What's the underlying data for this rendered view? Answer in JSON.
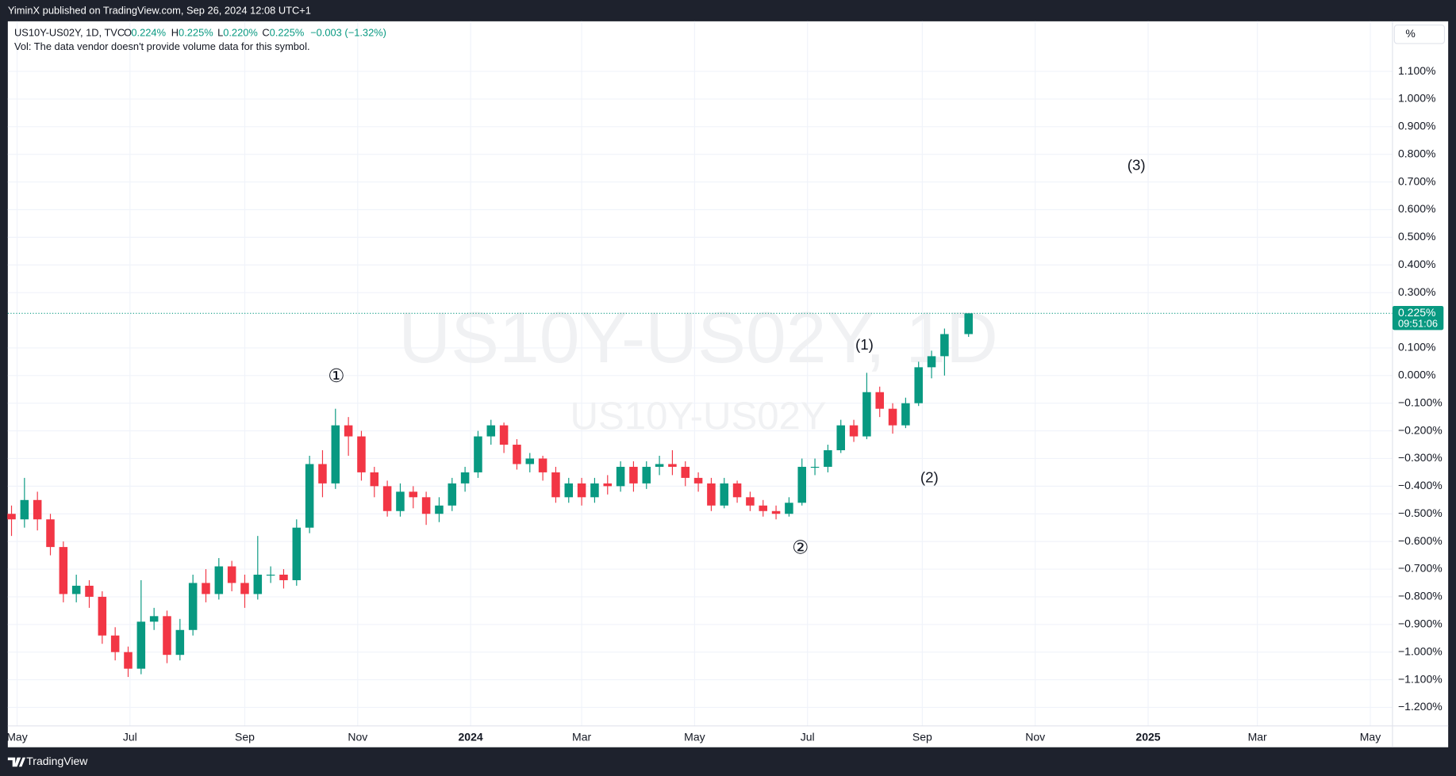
{
  "header": {
    "publisher": "YiminX published on TradingView.com, Sep 26, 2024 12:08 UTC+1"
  },
  "footer": {
    "brand": "TradingView"
  },
  "toolbar": {
    "scale_button": "%"
  },
  "chart_data": {
    "type": "candlestick",
    "symbol": "US10Y-US02Y, 1D, TVC",
    "ohlc_legend": {
      "o_label": "O",
      "o": "0.224%",
      "h_label": "H",
      "h": "0.225%",
      "l_label": "L",
      "l": "0.220%",
      "c_label": "C",
      "c": "0.225%",
      "change": "−0.003 (−1.32%)"
    },
    "volume_note": "Vol: The data vendor doesn't provide volume data for this symbol.",
    "watermark": "US10Y-US02Y, 1D",
    "watermark_sub": "US10Y-US02Y",
    "last_price_label": "0.225%",
    "countdown": "09:51:06",
    "annotations": [
      "①",
      "②",
      "(1)",
      "(2)",
      "(3)"
    ],
    "up_color": "#089981",
    "down_color": "#f23645",
    "grid": true,
    "x": [
      "2023-04-28",
      "2023-05-05",
      "2023-05-12",
      "2023-05-19",
      "2023-05-26",
      "2023-06-02",
      "2023-06-09",
      "2023-06-16",
      "2023-06-23",
      "2023-06-30",
      "2023-07-07",
      "2023-07-14",
      "2023-07-21",
      "2023-07-28",
      "2023-08-04",
      "2023-08-11",
      "2023-08-18",
      "2023-08-25",
      "2023-09-01",
      "2023-09-08",
      "2023-09-15",
      "2023-09-22",
      "2023-09-29",
      "2023-10-06",
      "2023-10-13",
      "2023-10-20",
      "2023-10-27",
      "2023-11-03",
      "2023-11-10",
      "2023-11-17",
      "2023-11-24",
      "2023-12-01",
      "2023-12-08",
      "2023-12-15",
      "2023-12-22",
      "2023-12-29",
      "2024-01-05",
      "2024-01-12",
      "2024-01-19",
      "2024-01-26",
      "2024-02-02",
      "2024-02-09",
      "2024-02-16",
      "2024-02-23",
      "2024-03-01",
      "2024-03-08",
      "2024-03-15",
      "2024-03-22",
      "2024-03-29",
      "2024-04-05",
      "2024-04-12",
      "2024-04-19",
      "2024-04-26",
      "2024-05-03",
      "2024-05-10",
      "2024-05-17",
      "2024-05-24",
      "2024-05-31",
      "2024-06-07",
      "2024-06-14",
      "2024-06-21",
      "2024-06-28",
      "2024-07-05",
      "2024-07-12",
      "2024-07-19",
      "2024-07-26",
      "2024-08-02",
      "2024-08-09",
      "2024-08-16",
      "2024-08-23",
      "2024-08-30",
      "2024-09-06",
      "2024-09-13",
      "2024-09-26"
    ],
    "open": [
      -0.5,
      -0.52,
      -0.45,
      -0.52,
      -0.62,
      -0.79,
      -0.76,
      -0.8,
      -0.94,
      -1.0,
      -1.06,
      -0.89,
      -0.87,
      -1.01,
      -0.92,
      -0.75,
      -0.79,
      -0.69,
      -0.75,
      -0.79,
      -0.72,
      -0.72,
      -0.74,
      -0.55,
      -0.32,
      -0.39,
      -0.18,
      -0.22,
      -0.35,
      -0.4,
      -0.49,
      -0.42,
      -0.44,
      -0.5,
      -0.47,
      -0.39,
      -0.35,
      -0.22,
      -0.18,
      -0.25,
      -0.32,
      -0.3,
      -0.35,
      -0.44,
      -0.39,
      -0.44,
      -0.39,
      -0.4,
      -0.33,
      -0.39,
      -0.33,
      -0.32,
      -0.33,
      -0.37,
      -0.39,
      -0.47,
      -0.39,
      -0.44,
      -0.47,
      -0.49,
      -0.5,
      -0.46,
      -0.33,
      -0.33,
      -0.27,
      -0.18,
      -0.22,
      -0.06,
      -0.12,
      -0.18,
      -0.1,
      0.03,
      0.07,
      0.15
    ],
    "high": [
      -0.47,
      -0.37,
      -0.42,
      -0.5,
      -0.6,
      -0.72,
      -0.74,
      -0.78,
      -0.91,
      -0.98,
      -0.74,
      -0.84,
      -0.85,
      -0.88,
      -0.72,
      -0.7,
      -0.66,
      -0.67,
      -0.72,
      -0.58,
      -0.69,
      -0.7,
      -0.52,
      -0.29,
      -0.27,
      -0.12,
      -0.15,
      -0.2,
      -0.33,
      -0.38,
      -0.39,
      -0.4,
      -0.42,
      -0.44,
      -0.37,
      -0.33,
      -0.2,
      -0.16,
      -0.17,
      -0.23,
      -0.28,
      -0.29,
      -0.33,
      -0.37,
      -0.37,
      -0.37,
      -0.36,
      -0.31,
      -0.31,
      -0.31,
      -0.29,
      -0.27,
      -0.31,
      -0.35,
      -0.37,
      -0.37,
      -0.38,
      -0.42,
      -0.45,
      -0.47,
      -0.44,
      -0.3,
      -0.3,
      -0.25,
      -0.16,
      -0.16,
      0.01,
      -0.04,
      -0.1,
      -0.08,
      0.05,
      0.09,
      0.17,
      0.225
    ],
    "low": [
      -0.58,
      -0.55,
      -0.56,
      -0.65,
      -0.82,
      -0.82,
      -0.84,
      -0.97,
      -1.03,
      -1.09,
      -1.08,
      -0.92,
      -1.04,
      -1.03,
      -0.94,
      -0.82,
      -0.81,
      -0.78,
      -0.84,
      -0.81,
      -0.75,
      -0.77,
      -0.76,
      -0.57,
      -0.44,
      -0.41,
      -0.29,
      -0.38,
      -0.44,
      -0.51,
      -0.51,
      -0.48,
      -0.54,
      -0.53,
      -0.49,
      -0.42,
      -0.37,
      -0.25,
      -0.28,
      -0.34,
      -0.35,
      -0.38,
      -0.46,
      -0.46,
      -0.47,
      -0.46,
      -0.43,
      -0.42,
      -0.42,
      -0.41,
      -0.36,
      -0.36,
      -0.4,
      -0.42,
      -0.49,
      -0.48,
      -0.46,
      -0.49,
      -0.51,
      -0.52,
      -0.51,
      -0.47,
      -0.36,
      -0.35,
      -0.28,
      -0.24,
      -0.23,
      -0.15,
      -0.21,
      -0.19,
      -0.11,
      -0.01,
      0.0,
      0.14
    ],
    "close": [
      -0.52,
      -0.45,
      -0.52,
      -0.62,
      -0.79,
      -0.76,
      -0.8,
      -0.94,
      -1.0,
      -1.06,
      -0.89,
      -0.87,
      -1.01,
      -0.92,
      -0.75,
      -0.79,
      -0.69,
      -0.75,
      -0.79,
      -0.72,
      -0.72,
      -0.74,
      -0.55,
      -0.32,
      -0.39,
      -0.18,
      -0.22,
      -0.35,
      -0.4,
      -0.49,
      -0.42,
      -0.44,
      -0.5,
      -0.47,
      -0.39,
      -0.35,
      -0.22,
      -0.18,
      -0.25,
      -0.32,
      -0.3,
      -0.35,
      -0.44,
      -0.39,
      -0.44,
      -0.39,
      -0.4,
      -0.33,
      -0.39,
      -0.33,
      -0.32,
      -0.33,
      -0.37,
      -0.39,
      -0.47,
      -0.39,
      -0.44,
      -0.47,
      -0.49,
      -0.5,
      -0.46,
      -0.33,
      -0.33,
      -0.27,
      -0.18,
      -0.22,
      -0.06,
      -0.12,
      -0.18,
      -0.1,
      0.03,
      0.07,
      0.15,
      0.225
    ],
    "xlim": [
      "2023-04-26",
      "2025-05-13"
    ],
    "xticks": [
      {
        "value": "2023-05-01",
        "label": "May"
      },
      {
        "value": "2023-07-01",
        "label": "Jul"
      },
      {
        "value": "2023-09-01",
        "label": "Sep"
      },
      {
        "value": "2023-11-01",
        "label": "Nov"
      },
      {
        "value": "2024-01-01",
        "label": "2024"
      },
      {
        "value": "2024-03-01",
        "label": "Mar"
      },
      {
        "value": "2024-05-01",
        "label": "May"
      },
      {
        "value": "2024-07-01",
        "label": "Jul"
      },
      {
        "value": "2024-09-01",
        "label": "Sep"
      },
      {
        "value": "2024-11-01",
        "label": "Nov"
      },
      {
        "value": "2025-01-01",
        "label": "2025"
      },
      {
        "value": "2025-03-01",
        "label": "Mar"
      },
      {
        "value": "2025-05-01",
        "label": "May"
      }
    ],
    "ylim": [
      -1.267,
      1.281
    ],
    "yticks": [
      {
        "value": 1.1,
        "label": "1.100%"
      },
      {
        "value": 1.0,
        "label": "1.000%"
      },
      {
        "value": 0.9,
        "label": "0.900%"
      },
      {
        "value": 0.8,
        "label": "0.800%"
      },
      {
        "value": 0.7,
        "label": "0.700%"
      },
      {
        "value": 0.6,
        "label": "0.600%"
      },
      {
        "value": 0.5,
        "label": "0.500%"
      },
      {
        "value": 0.4,
        "label": "0.400%"
      },
      {
        "value": 0.3,
        "label": "0.300%"
      },
      {
        "value": 0.1,
        "label": "0.100%"
      },
      {
        "value": 0.0,
        "label": "0.000%"
      },
      {
        "value": -0.1,
        "label": "−0.100%"
      },
      {
        "value": -0.2,
        "label": "−0.200%"
      },
      {
        "value": -0.3,
        "label": "−0.300%"
      },
      {
        "value": -0.4,
        "label": "−0.400%"
      },
      {
        "value": -0.5,
        "label": "−0.500%"
      },
      {
        "value": -0.6,
        "label": "−0.600%"
      },
      {
        "value": -0.7,
        "label": "−0.700%"
      },
      {
        "value": -0.8,
        "label": "−0.800%"
      },
      {
        "value": -0.9,
        "label": "−0.900%"
      },
      {
        "value": -1.0,
        "label": "−1.000%"
      },
      {
        "value": -1.1,
        "label": "−1.100%"
      },
      {
        "value": -1.2,
        "label": "−1.200%"
      }
    ]
  }
}
